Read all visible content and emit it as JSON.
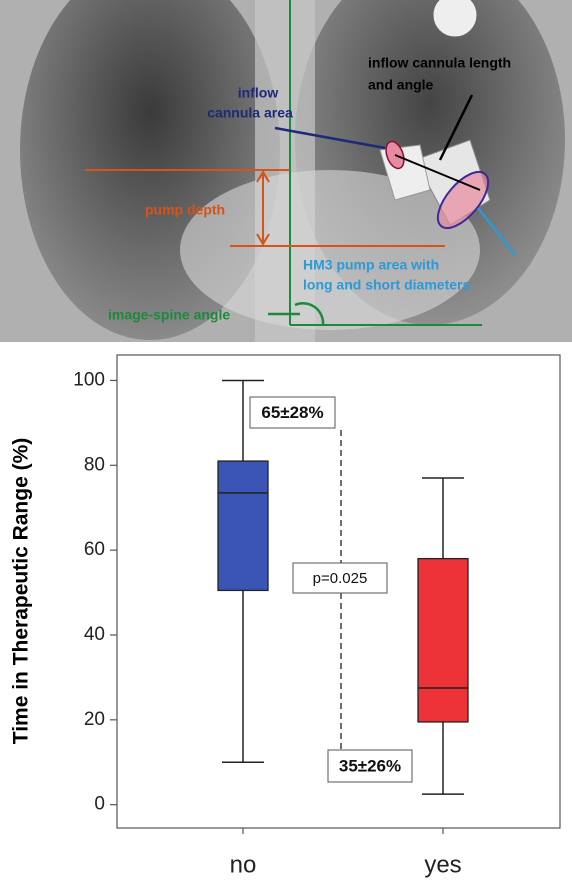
{
  "image": {
    "annotations": [
      {
        "lines": [
          "inflow",
          "cannula area"
        ],
        "color": "#1c2a78"
      },
      {
        "lines": [
          "inflow cannula length",
          "and angle"
        ],
        "color": "#000000"
      },
      {
        "lines": [
          "pump depth"
        ],
        "color": "#d4541a"
      },
      {
        "lines": [
          "HM3 pump area with",
          "long and short diameters"
        ],
        "color": "#2a9ad8"
      },
      {
        "lines": [
          "image-spine angle"
        ],
        "color": "#1c8a3c"
      }
    ]
  },
  "chart_data": {
    "type": "box",
    "ylabel": "Time in Therapeutic Range (%)",
    "categories": [
      "no",
      "yes"
    ],
    "boxes": [
      {
        "min": 10,
        "q1": 50.5,
        "median": 73.5,
        "q3": 81,
        "max": 100
      },
      {
        "min": 2.5,
        "q1": 19.5,
        "median": 27.5,
        "q3": 58,
        "max": 77
      }
    ],
    "colors": [
      "#3a55b4",
      "#ee3338"
    ],
    "ylim": [
      -5.5,
      106
    ],
    "yticks": [
      0,
      20,
      40,
      60,
      80,
      100
    ],
    "annotations": [
      "65±28%",
      "p=0.025",
      "35±26%"
    ]
  }
}
